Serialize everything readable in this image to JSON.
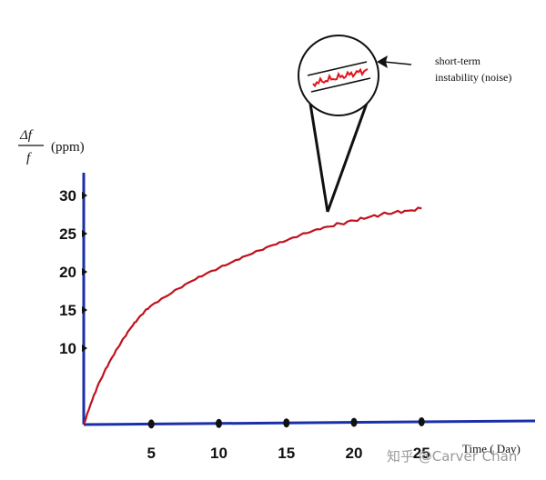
{
  "chart_data": {
    "type": "line",
    "ylabel_fraction_top": "Δf",
    "ylabel_fraction_bottom": "f",
    "ylabel_unit": "(ppm)",
    "xlabel": "Time ( Day)",
    "x_ticks": [
      "5",
      "10",
      "15",
      "20",
      "25"
    ],
    "y_ticks": [
      "10",
      "15",
      "20",
      "25",
      "30"
    ],
    "xlim": [
      0,
      33
    ],
    "ylim": [
      0,
      32
    ],
    "series": [
      {
        "color": "#c0121e",
        "x": [
          0,
          0.5,
          1,
          1.5,
          2,
          2.5,
          3,
          3.5,
          4,
          4.5,
          5,
          6,
          7,
          8,
          9,
          10,
          11,
          12,
          13,
          14,
          15,
          16,
          17,
          18,
          19,
          20,
          21,
          22,
          23,
          24,
          25
        ],
        "y": [
          0,
          2.6,
          4.9,
          6.8,
          8.5,
          10.0,
          11.4,
          12.7,
          13.8,
          14.8,
          15.6,
          16.7,
          17.8,
          18.8,
          19.7,
          20.5,
          21.3,
          22.1,
          22.8,
          23.5,
          24.1,
          24.8,
          25.4,
          25.9,
          26.3,
          26.7,
          27.1,
          27.5,
          27.8,
          28.0,
          28.3
        ]
      }
    ],
    "annotation": {
      "lines": [
        "short-term",
        "instability  (noise)"
      ],
      "at_x": 18.2,
      "at_y": 26.4
    }
  },
  "watermark": "知乎 @Carver Chan"
}
